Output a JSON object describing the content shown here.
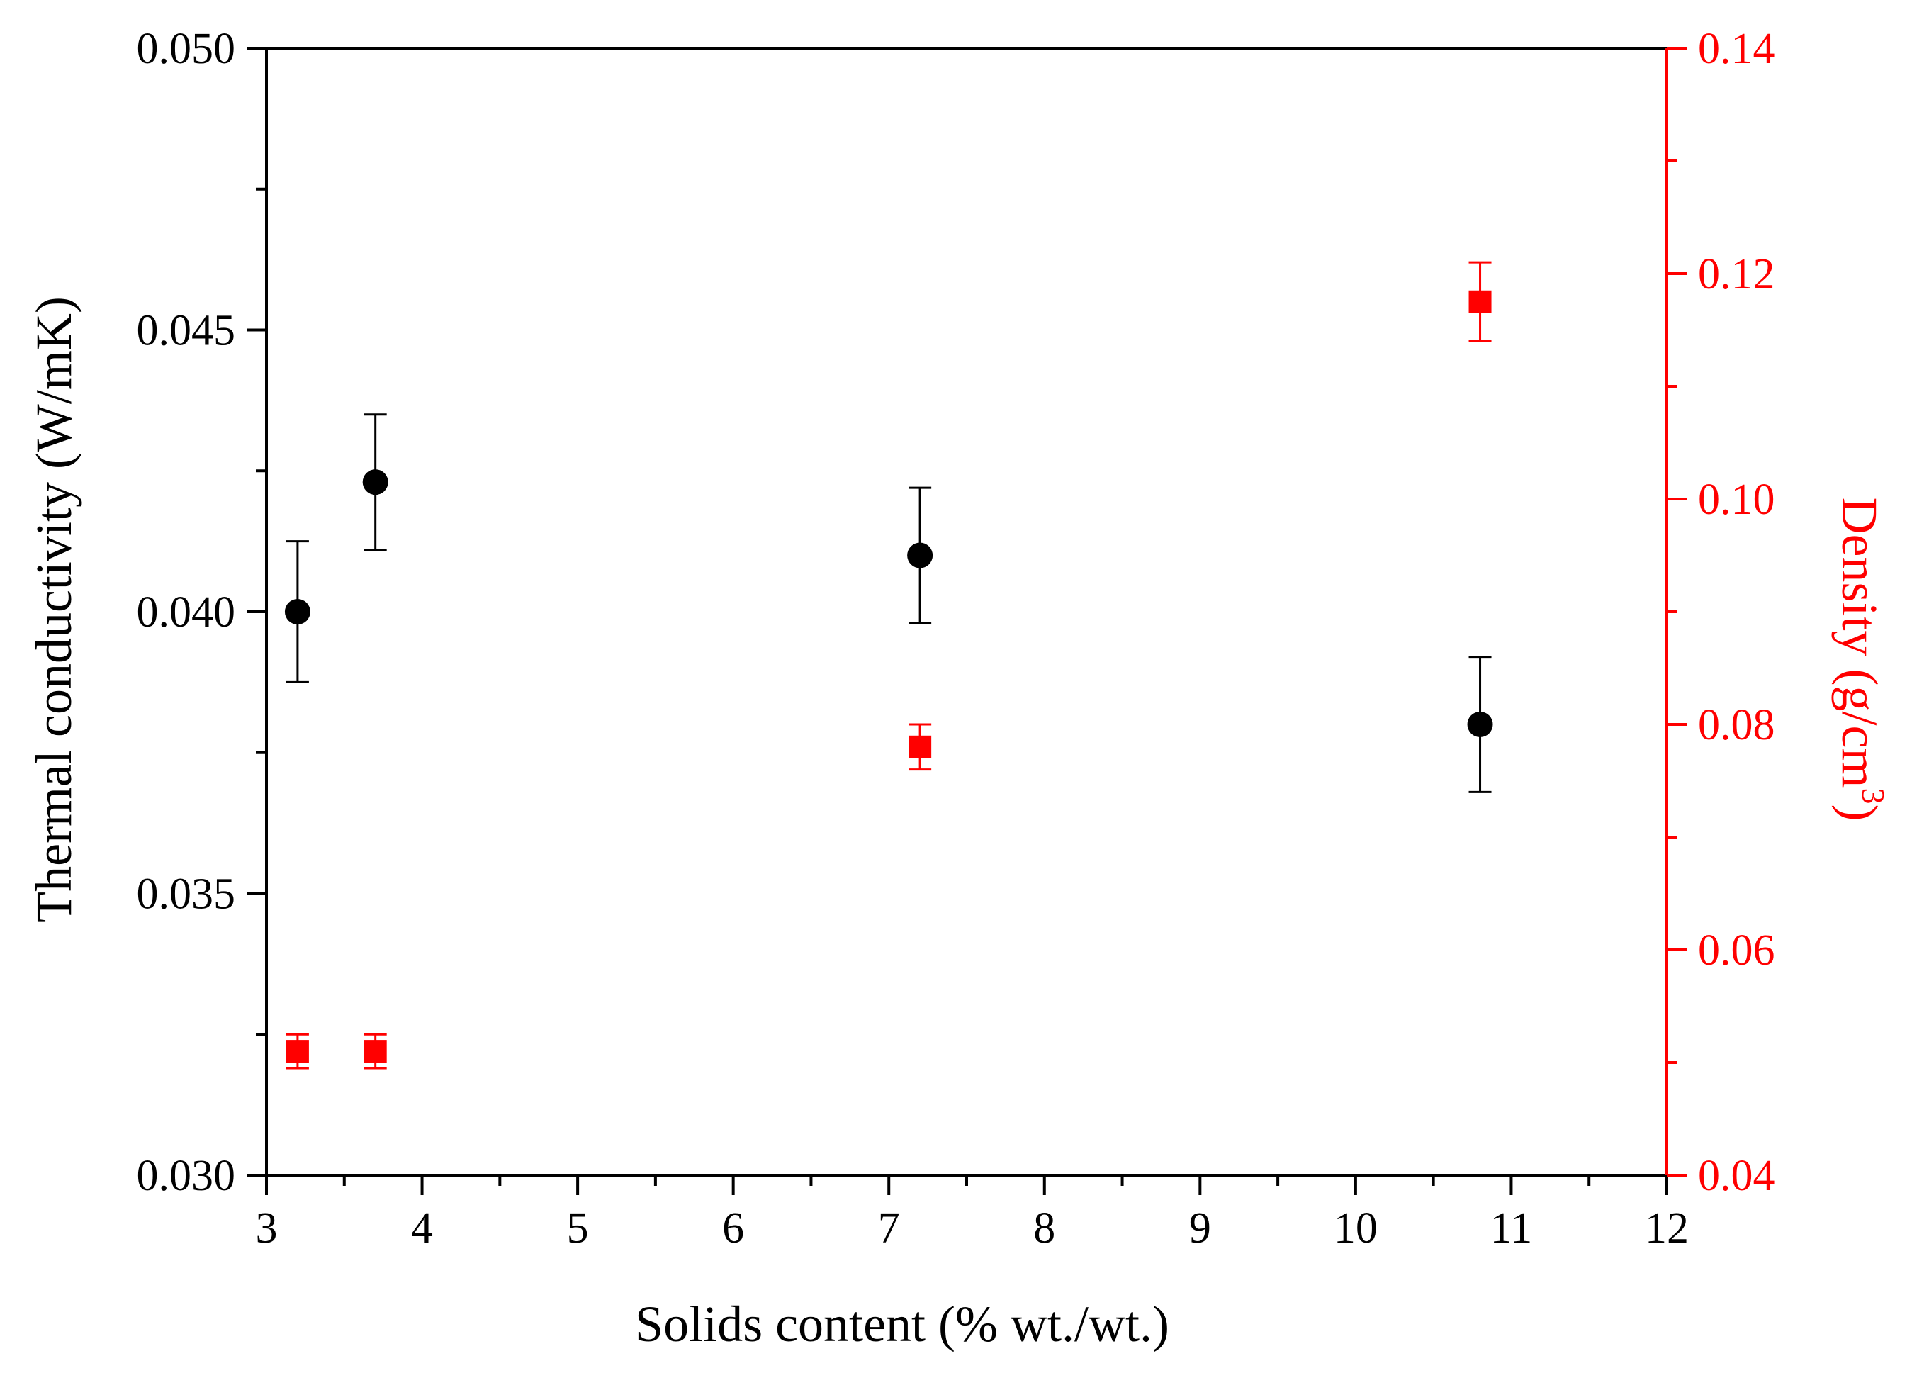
{
  "chart_data": {
    "type": "scatter",
    "xlabel": "Solids content (% wt./wt.)",
    "ylabel_left": "Thermal conductivity (W/mK)",
    "ylabel_right_main": "Density (g/cm",
    "ylabel_right_sup": "3",
    "ylabel_right_close": ")",
    "xlim": [
      3,
      12
    ],
    "ylim_left": [
      0.03,
      0.05
    ],
    "ylim_right": [
      0.04,
      0.14
    ],
    "x_ticks": [
      "3",
      "4",
      "5",
      "6",
      "7",
      "8",
      "9",
      "10",
      "11",
      "12"
    ],
    "y_left_ticks": [
      "0.030",
      "0.035",
      "0.040",
      "0.045",
      "0.050"
    ],
    "y_right_ticks": [
      "0.04",
      "0.06",
      "0.08",
      "0.10",
      "0.12",
      "0.14"
    ],
    "grid": false,
    "colors": {
      "left_axis": "#000000",
      "right_axis": "#ff0000",
      "thermal_marker": "#000000",
      "density_marker": "#ff0000"
    },
    "series": [
      {
        "axis": "left",
        "marker": "circle",
        "color": "#000000",
        "x": [
          3.2,
          3.7,
          7.2,
          10.8
        ],
        "y": [
          0.04,
          0.0423,
          0.041,
          0.038
        ],
        "err": [
          0.00125,
          0.0012,
          0.0012,
          0.0012
        ]
      },
      {
        "axis": "right",
        "marker": "square",
        "color": "#ff0000",
        "x": [
          3.2,
          3.7,
          7.2,
          10.8
        ],
        "y": [
          0.051,
          0.051,
          0.078,
          0.1175
        ],
        "err": [
          0.0015,
          0.0015,
          0.002,
          0.0035
        ]
      }
    ]
  }
}
